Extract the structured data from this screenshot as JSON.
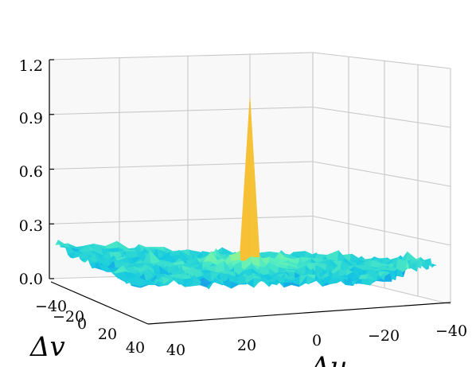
{
  "chart_data": {
    "type": "surface3d",
    "zlim": [
      0.0,
      1.2
    ],
    "z_ticks": [
      "0.0",
      "0.3",
      "0.6",
      "0.9",
      "1.2"
    ],
    "x_label": "Δu",
    "y_label": "Δv",
    "x_ticks": [
      "40",
      "20",
      "0",
      "−20",
      "−40"
    ],
    "y_ticks": [
      "−40",
      "−20",
      "0",
      "20",
      "40"
    ],
    "xlim": [
      -40,
      40
    ],
    "ylim": [
      -40,
      40
    ],
    "peak": {
      "du": 0,
      "dv": 0,
      "z": 1.0
    },
    "noise_floor": 0.06,
    "grid": true,
    "colormap": "rainbow"
  }
}
